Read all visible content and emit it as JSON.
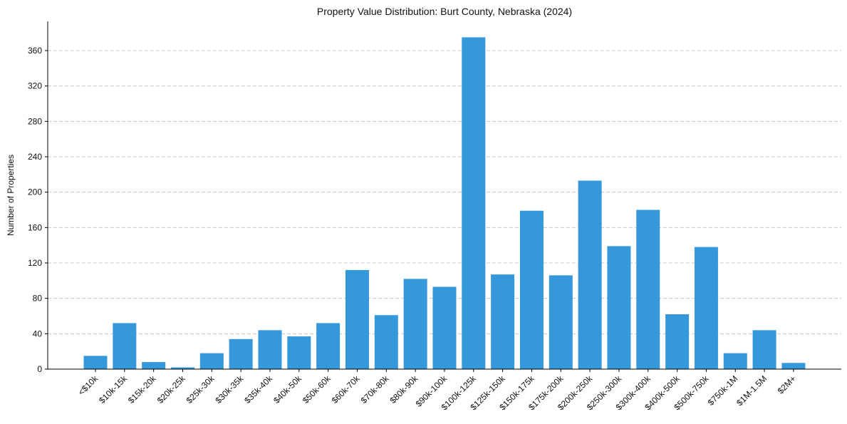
{
  "chart_data": {
    "type": "bar",
    "title": "Property Value Distribution: Burt County, Nebraska (2024)",
    "xlabel": "",
    "ylabel": "Number of Properties",
    "categories": [
      "<$10k",
      "$10k-15k",
      "$15k-20k",
      "$20k-25k",
      "$25k-30k",
      "$30k-35k",
      "$35k-40k",
      "$40k-50k",
      "$50k-60k",
      "$60k-70k",
      "$70k-80k",
      "$80k-90k",
      "$90k-100k",
      "$100k-125k",
      "$125k-150k",
      "$150k-175k",
      "$175k-200k",
      "$200k-250k",
      "$250k-300k",
      "$300k-400k",
      "$400k-500k",
      "$500k-750k",
      "$750k-1M",
      "$1M-1.5M",
      "$2M+"
    ],
    "values": [
      15,
      52,
      8,
      2,
      18,
      34,
      44,
      37,
      52,
      112,
      61,
      102,
      93,
      375,
      107,
      179,
      106,
      213,
      139,
      180,
      62,
      138,
      18,
      44,
      7
    ],
    "yticks": [
      0,
      40,
      80,
      120,
      160,
      200,
      240,
      280,
      320,
      360
    ],
    "ylim": [
      0,
      393
    ],
    "grid": "y-dashed",
    "bar_color": "#3498db"
  }
}
